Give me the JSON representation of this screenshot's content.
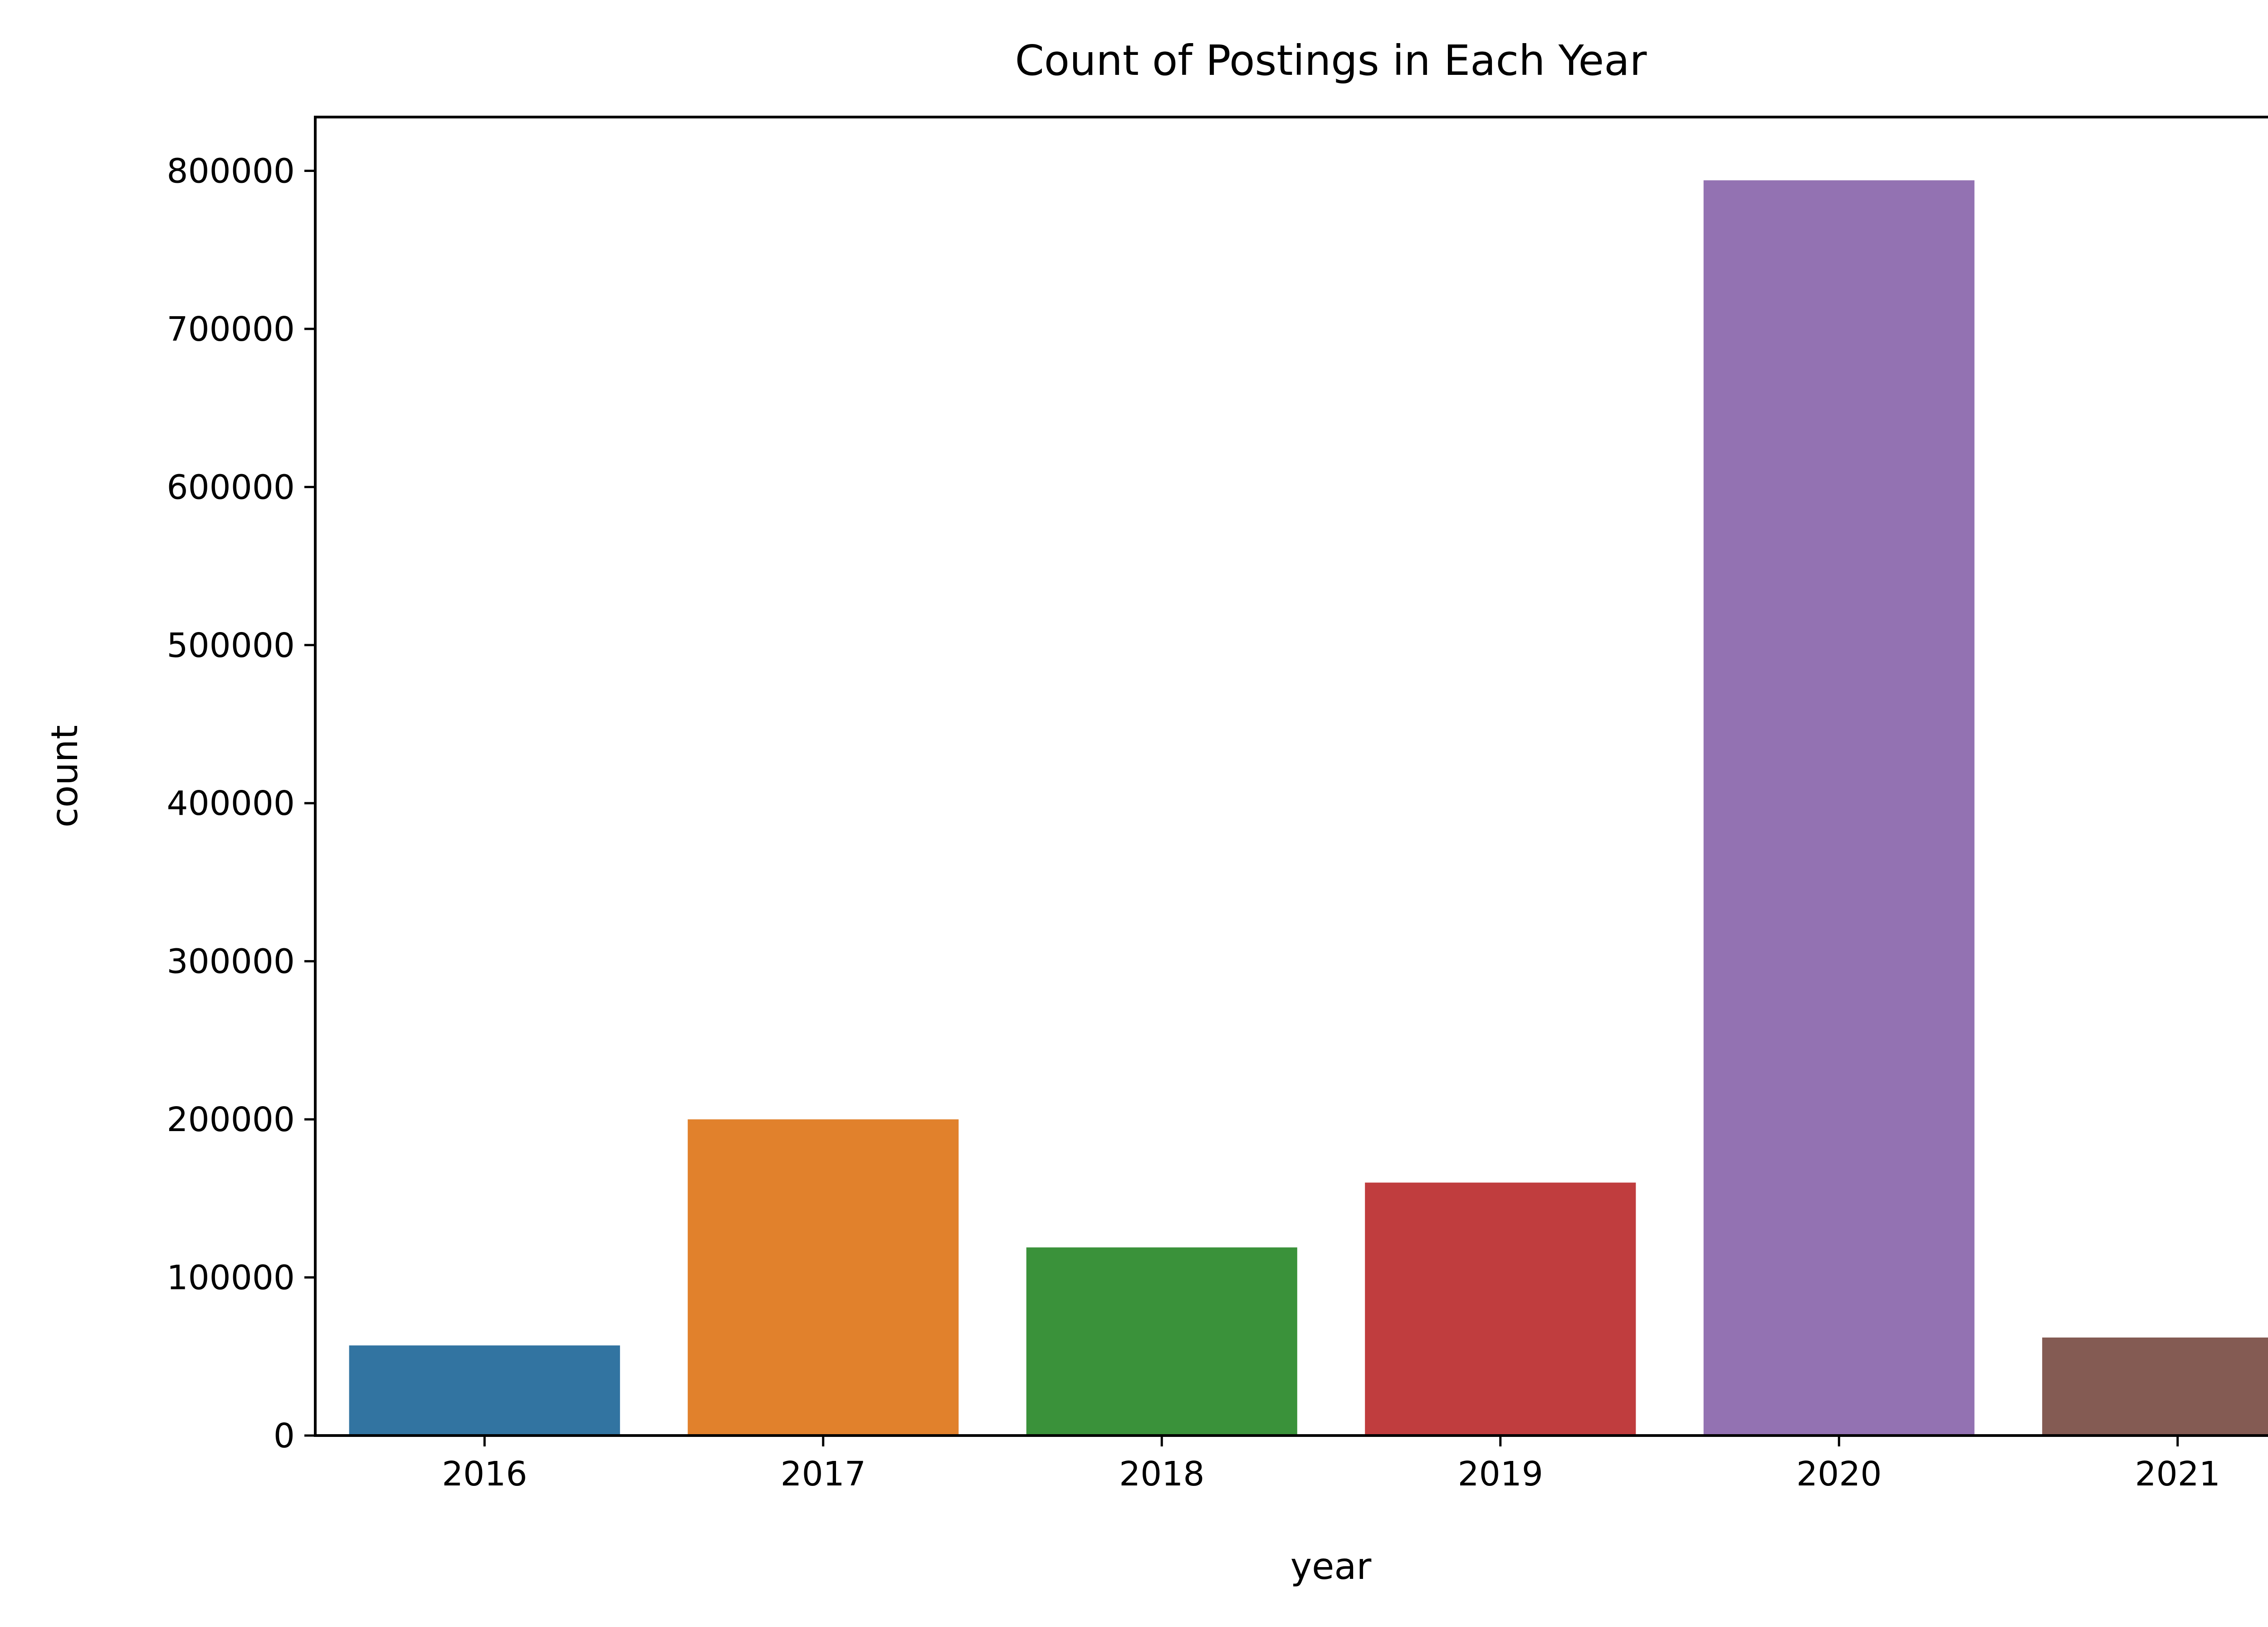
{
  "chart_data": {
    "type": "bar",
    "title": "Count of Postings in Each Year",
    "xlabel": "year",
    "ylabel": "count",
    "categories": [
      "2016",
      "2017",
      "2018",
      "2019",
      "2020",
      "2021"
    ],
    "values": [
      57000,
      200000,
      119000,
      160000,
      794000,
      62000
    ],
    "colors": [
      "#3274a1",
      "#e1812c",
      "#3a923a",
      "#c03d3e",
      "#9372b2",
      "#845b53"
    ],
    "ylim": [
      0,
      834000
    ],
    "yticks": [
      0,
      100000,
      200000,
      300000,
      400000,
      500000,
      600000,
      700000,
      800000
    ],
    "ytick_labels": [
      "0",
      "100000",
      "200000",
      "300000",
      "400000",
      "500000",
      "600000",
      "700000",
      "800000"
    ],
    "grid": false,
    "legend": false
  }
}
